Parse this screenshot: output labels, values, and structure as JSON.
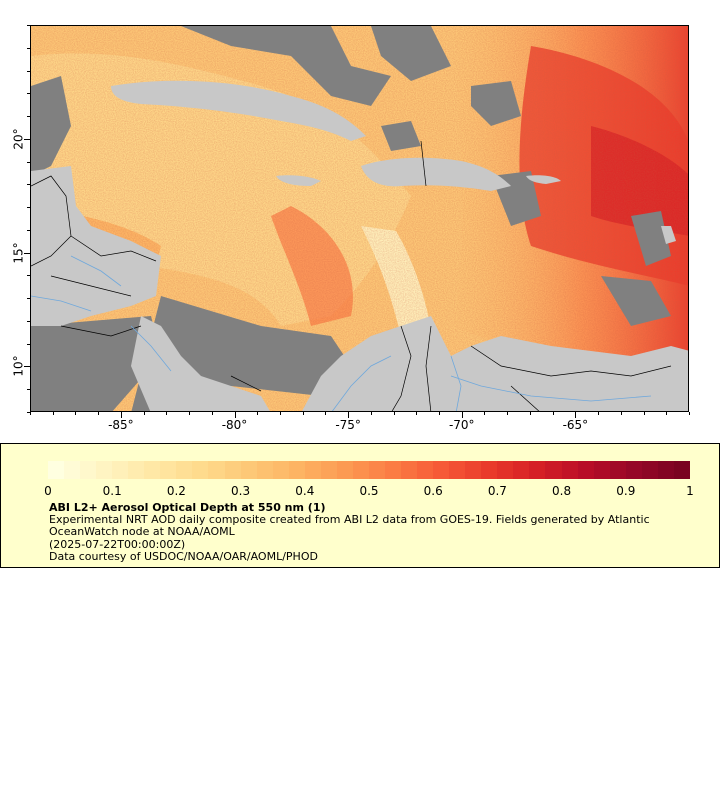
{
  "map": {
    "x_axis_labels": [
      "-85°",
      "-80°",
      "-75°",
      "-70°",
      "-65°"
    ],
    "x_axis_lons": [
      -85,
      -80,
      -75,
      -70,
      -65
    ],
    "y_axis_labels": [
      "20°",
      "15°",
      "10°"
    ],
    "y_axis_lats": [
      20,
      15,
      10
    ],
    "lon_range": [
      -89,
      -60
    ],
    "lat_range": [
      8,
      25
    ],
    "colors": {
      "land": "#c8c8c8",
      "no_data": "#808080",
      "rivers": "#6fa8dc",
      "borders": "#000000"
    }
  },
  "legend": {
    "title": "ABI L2+ Aerosol Optical Depth at 550 nm (1)",
    "description": "Experimental NRT AOD daily composite created from ABI L2 data from GOES-19. Fields generated by Atlantic OceanWatch node at NOAA/AOML",
    "date": "(2025-07-22T00:00:00Z)",
    "credit": "Data courtesy of USDOC/NOAA/OAR/AOML/PHOD",
    "colorbar_labels": [
      "0",
      "0.1",
      "0.2",
      "0.3",
      "0.4",
      "0.5",
      "0.6",
      "0.7",
      "0.8",
      "0.9",
      "1"
    ],
    "colorbar_min": 0,
    "colorbar_max": 1,
    "colorbar_colors": [
      "#ffffe0",
      "#fff4c2",
      "#ffe8a6",
      "#fedb8d",
      "#fdc877",
      "#fdb463",
      "#fc9a52",
      "#fb7c44",
      "#f65a37",
      "#e93a2b",
      "#d51f25",
      "#b80d27",
      "#960728",
      "#7a0320"
    ]
  }
}
